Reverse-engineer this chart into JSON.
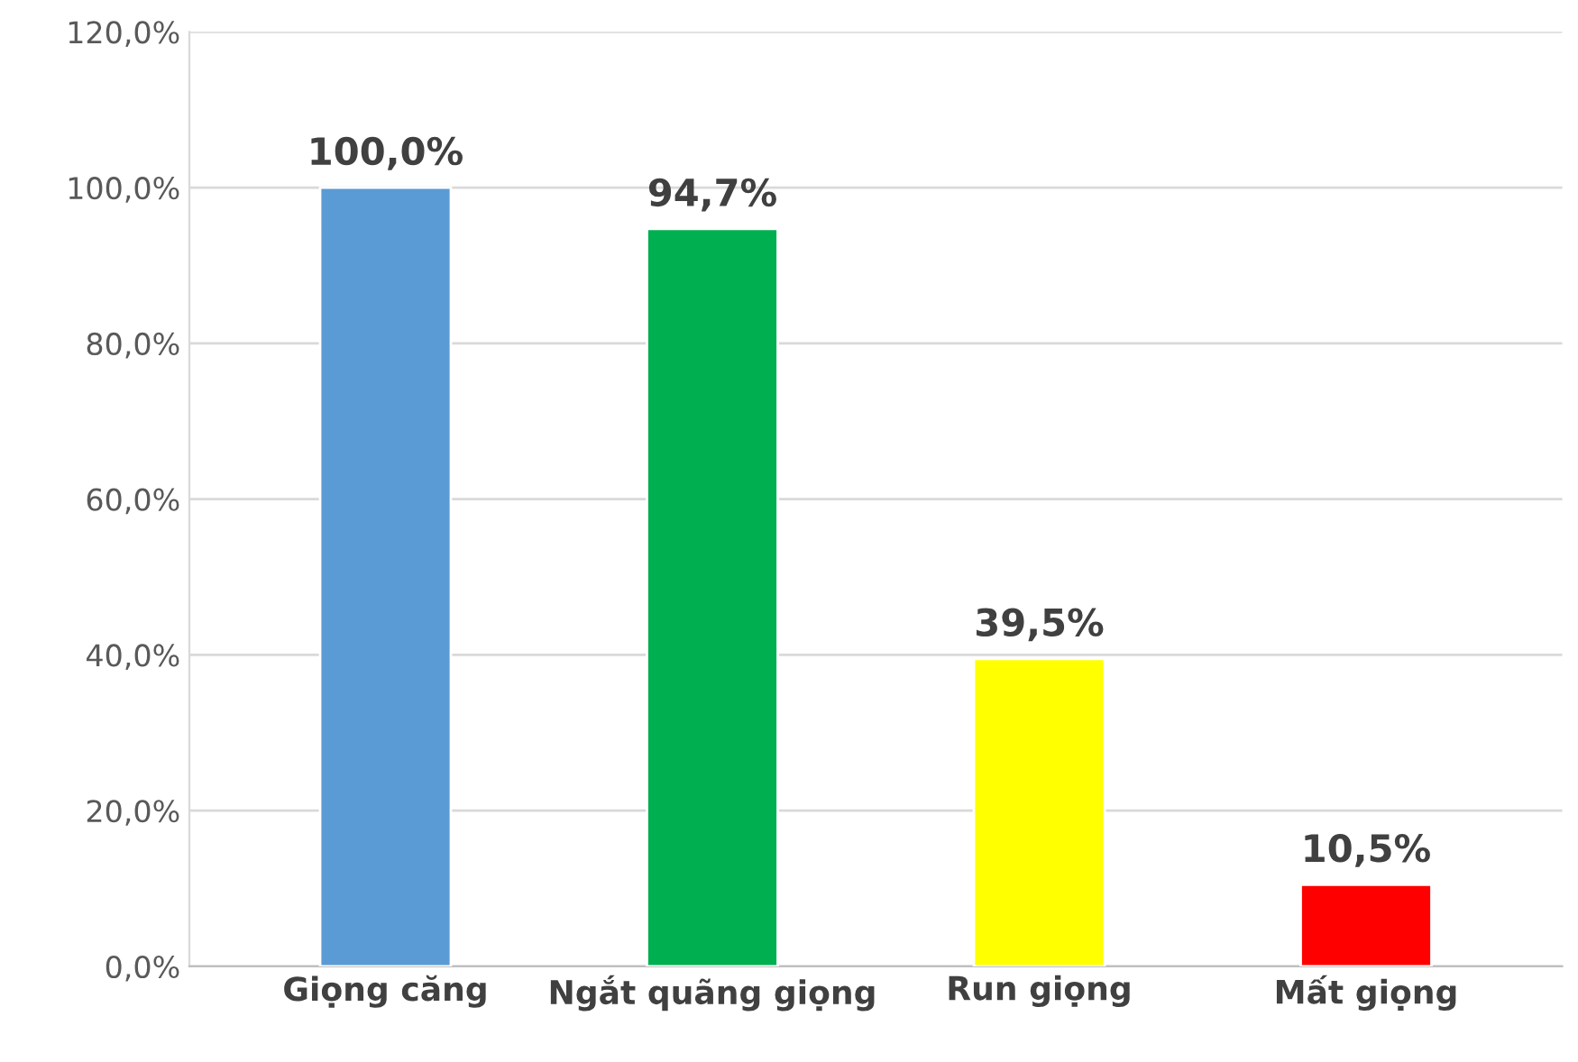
{
  "chart_data": {
    "type": "bar",
    "categories": [
      "Giọng căng",
      "Ngắt quãng giọng",
      "Run giọng",
      "Mất giọng"
    ],
    "values": [
      100.0,
      94.7,
      39.5,
      10.5
    ],
    "colors": [
      "#5b9bd5",
      "#00b050",
      "#ffff00",
      "#ff0000"
    ],
    "value_labels": [
      "100,0%",
      "94,7%",
      "39,5%",
      "10,5%"
    ],
    "ylim": [
      0,
      120
    ],
    "yticks": [
      {
        "value": 0,
        "label": "0,0%"
      },
      {
        "value": 20,
        "label": "20,0%"
      },
      {
        "value": 40,
        "label": "40,0%"
      },
      {
        "value": 60,
        "label": "60,0%"
      },
      {
        "value": 80,
        "label": "80,0%"
      },
      {
        "value": 100,
        "label": "100,0%"
      },
      {
        "value": 120,
        "label": "120,0%"
      }
    ],
    "grid": "y",
    "legend": false
  }
}
